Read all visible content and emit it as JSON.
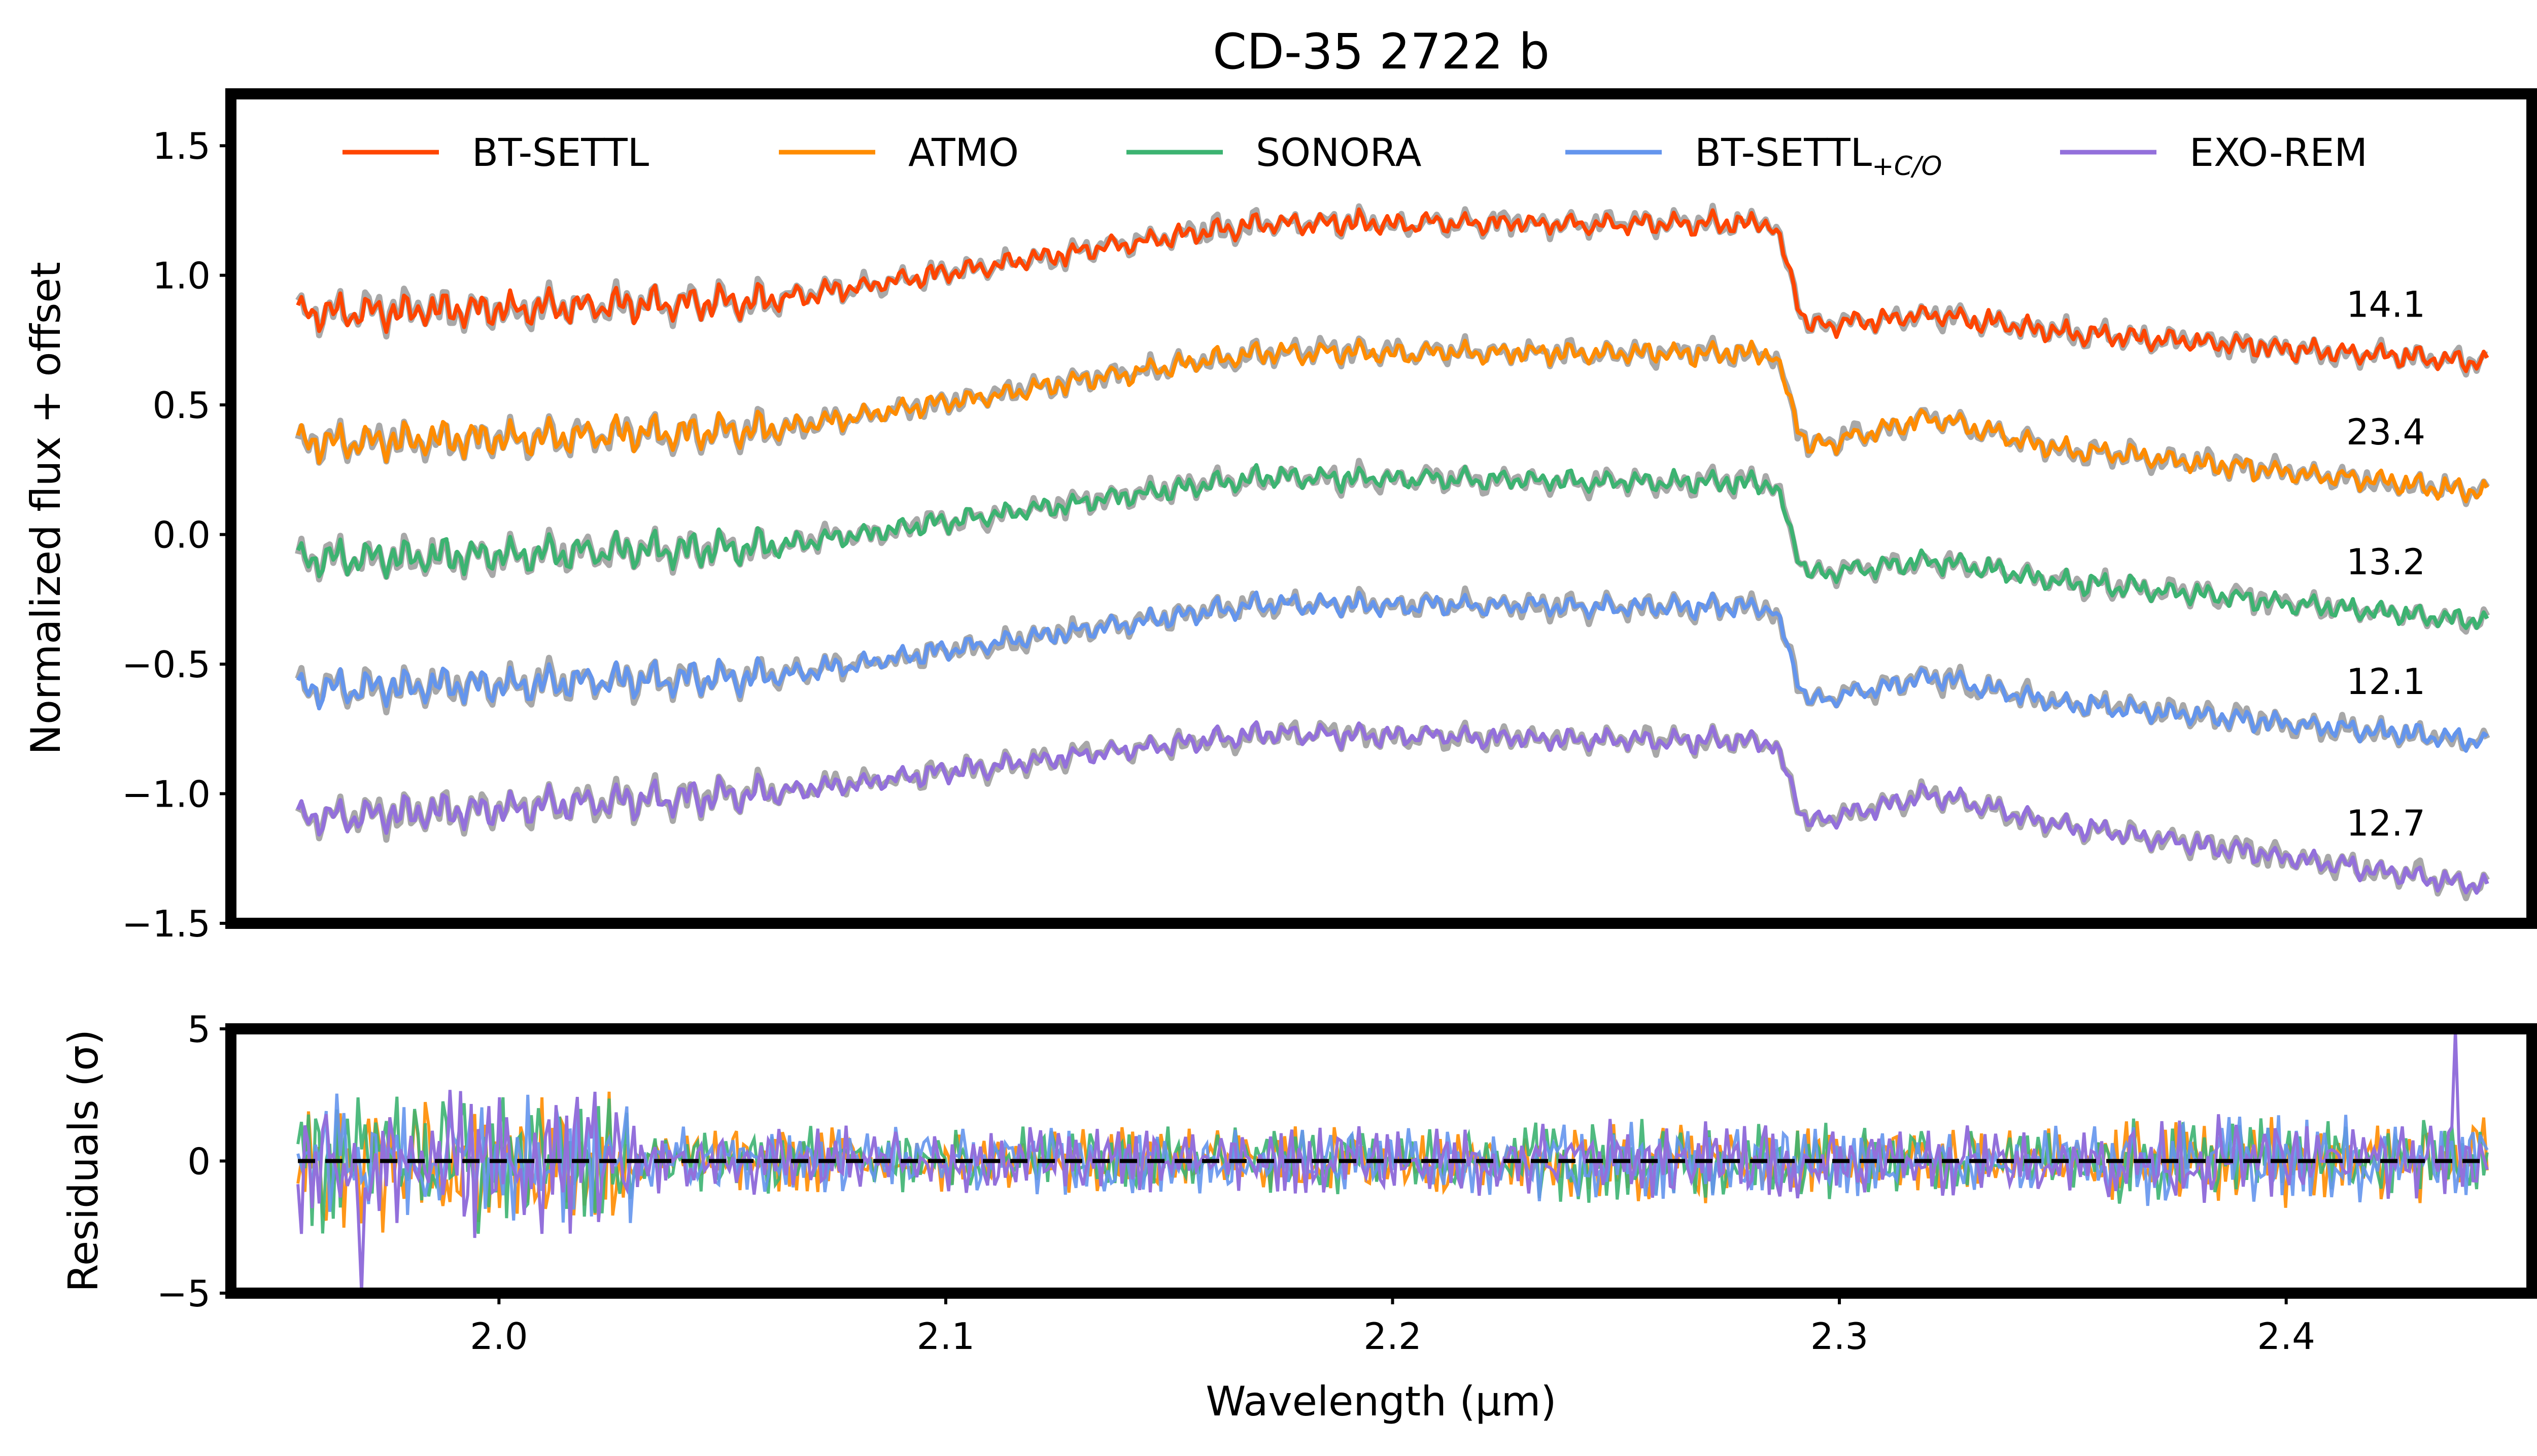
{
  "chart_data": [
    {
      "type": "line",
      "title": "CD-35 2722 b",
      "ylabel": "Normalized flux + offset",
      "xlim": [
        1.94,
        2.455
      ],
      "ylim": [
        -1.5,
        1.7
      ],
      "yticks": [
        "1.5",
        "1.0",
        "0.5",
        "0.0",
        "−0.5",
        "−1.0",
        "−1.5"
      ],
      "ytick_values": [
        1.5,
        1.0,
        0.5,
        0.0,
        -0.5,
        -1.0,
        -1.5
      ],
      "legend_position": "top",
      "observed_color": "#a8a8a8",
      "x_range_data": [
        1.955,
        2.445
      ],
      "series": [
        {
          "name": "BT-SETTL",
          "color": "#ff4500",
          "offset": 0.85,
          "annotation": "14.1",
          "anchors": [
            [
              1.955,
              0.0
            ],
            [
              2.06,
              0.05
            ],
            [
              2.17,
              0.35
            ],
            [
              2.285,
              0.35
            ],
            [
              2.293,
              -0.05
            ],
            [
              2.32,
              0.0
            ],
            [
              2.35,
              -0.07
            ],
            [
              2.445,
              -0.19
            ]
          ]
        },
        {
          "name": "ATMO",
          "color": "#ff8c00",
          "offset": 0.35,
          "annotation": "23.4",
          "anchors": [
            [
              1.955,
              0.0
            ],
            [
              2.06,
              0.05
            ],
            [
              2.17,
              0.35
            ],
            [
              2.285,
              0.35
            ],
            [
              2.293,
              -0.02
            ],
            [
              2.32,
              0.1
            ],
            [
              2.35,
              -0.02
            ],
            [
              2.445,
              -0.19
            ]
          ]
        },
        {
          "name": "SONORA",
          "color": "#3cb371",
          "offset": -0.1,
          "annotation": "13.2",
          "anchors": [
            [
              1.955,
              0.0
            ],
            [
              2.06,
              0.05
            ],
            [
              2.17,
              0.32
            ],
            [
              2.285,
              0.3
            ],
            [
              2.293,
              -0.06
            ],
            [
              2.32,
              0.0
            ],
            [
              2.35,
              -0.08
            ],
            [
              2.445,
              -0.24
            ]
          ]
        },
        {
          "name": "BT-SETTL+C/O",
          "color": "#6495ed",
          "offset": -0.6,
          "annotation": "12.1",
          "anchors": [
            [
              1.955,
              0.0
            ],
            [
              2.06,
              0.05
            ],
            [
              2.17,
              0.33
            ],
            [
              2.285,
              0.32
            ],
            [
              2.293,
              -0.05
            ],
            [
              2.32,
              0.05
            ],
            [
              2.35,
              -0.05
            ],
            [
              2.445,
              -0.2
            ]
          ]
        },
        {
          "name": "EXO-REM",
          "color": "#9370db",
          "offset": -1.1,
          "annotation": "12.7",
          "anchors": [
            [
              1.955,
              0.0
            ],
            [
              2.06,
              0.1
            ],
            [
              2.17,
              0.33
            ],
            [
              2.285,
              0.3
            ],
            [
              2.293,
              -0.02
            ],
            [
              2.32,
              0.1
            ],
            [
              2.35,
              -0.02
            ],
            [
              2.445,
              -0.26
            ]
          ]
        }
      ],
      "legend": [
        {
          "label": "BT-SETTL",
          "sub": "",
          "color": "#ff4500"
        },
        {
          "label": "ATMO",
          "sub": "",
          "color": "#ff8c00"
        },
        {
          "label": "SONORA",
          "sub": "",
          "color": "#3cb371"
        },
        {
          "label": "BT-SETTL",
          "sub": "+C/O",
          "color": "#6495ed"
        },
        {
          "label": "EXO-REM",
          "sub": "",
          "color": "#9370db"
        }
      ]
    },
    {
      "type": "line",
      "xlabel": "Wavelength (μm)",
      "ylabel": "Residuals (σ)",
      "xlim": [
        1.94,
        2.455
      ],
      "ylim": [
        -5,
        5
      ],
      "xticks": [
        "2.0",
        "2.1",
        "2.2",
        "2.3",
        "2.4"
      ],
      "xtick_values": [
        2.0,
        2.1,
        2.2,
        2.3,
        2.4
      ],
      "yticks": [
        "5",
        "0",
        "−5"
      ],
      "ytick_values": [
        5,
        0,
        -5
      ],
      "reference_line": 0,
      "series_colors": [
        "#ff8c00",
        "#3cb371",
        "#6495ed",
        "#9370db"
      ]
    }
  ]
}
